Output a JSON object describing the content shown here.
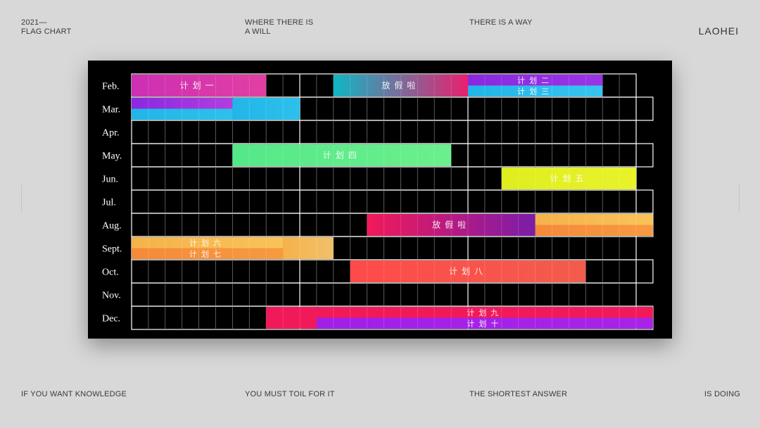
{
  "header": {
    "top_left_1": "2021—",
    "top_left_2": "FLAG CHART",
    "top_mid_1": "WHERE THERE IS",
    "top_mid_2": "A WILL",
    "top_mid_right": "THERE IS A WAY",
    "brand": "LAOHEI"
  },
  "footer": {
    "f1": "IF YOU WANT KNOWLEDGE",
    "f2": "YOU MUST TOIL FOR IT",
    "f3": "THE SHORTEST ANSWER",
    "f4": "IS DOING"
  },
  "chart_data": {
    "type": "gantt",
    "title": "",
    "months": [
      "Feb.",
      "Mar.",
      "Apr.",
      "May.",
      "Jun.",
      "Jul.",
      "Aug.",
      "Sept.",
      "Oct.",
      "Nov.",
      "Dec."
    ],
    "month_days": [
      28,
      31,
      30,
      31,
      30,
      31,
      31,
      30,
      31,
      30,
      31
    ],
    "weeks_per_row": 31,
    "bars": [
      {
        "row": 0,
        "start": 1,
        "end": 8,
        "half": "full",
        "label": "计划一",
        "colors": [
          "#cc2fb4",
          "#e23fa2"
        ]
      },
      {
        "row": 0,
        "start": 13,
        "end": 20,
        "half": "full",
        "label": "放假啦",
        "colors": [
          "#0fb7c4",
          "#e8206f"
        ]
      },
      {
        "row": 0,
        "start": 21,
        "end": 28,
        "half": "top",
        "label": "计划二",
        "colors": [
          "#8a28e0",
          "#9b33e6"
        ]
      },
      {
        "row": 0,
        "start": 21,
        "end": 28,
        "half": "bottom",
        "label": "计划三",
        "colors": [
          "#21b6e8",
          "#38c4ee"
        ]
      },
      {
        "row": 1,
        "start": 1,
        "end": 6,
        "half": "top",
        "label": "",
        "colors": [
          "#8a28e0",
          "#b23ee0"
        ]
      },
      {
        "row": 1,
        "start": 1,
        "end": 6,
        "half": "bottom",
        "label": "",
        "colors": [
          "#21b6e8",
          "#2ec0ec"
        ]
      },
      {
        "row": 1,
        "start": 7,
        "end": 10,
        "half": "full",
        "label": "",
        "colors": [
          "#21b6e8",
          "#2ec0ec"
        ]
      },
      {
        "row": 3,
        "start": 7,
        "end": 19,
        "half": "full",
        "label": "计划四",
        "colors": [
          "#54e888",
          "#6cef8e"
        ]
      },
      {
        "row": 4,
        "start": 23,
        "end": 30,
        "half": "full",
        "label": "计划五",
        "colors": [
          "#dfee1e",
          "#e9f22a"
        ]
      },
      {
        "row": 6,
        "start": 15,
        "end": 24,
        "half": "full",
        "label": "放假啦",
        "colors": [
          "#f2195a",
          "#7b1ca8"
        ]
      },
      {
        "row": 6,
        "start": 25,
        "end": 31,
        "half": "top",
        "label": "",
        "colors": [
          "#f6b24a",
          "#f8c35a"
        ]
      },
      {
        "row": 6,
        "start": 25,
        "end": 31,
        "half": "bottom",
        "label": "",
        "colors": [
          "#f58a3a",
          "#f69a40"
        ]
      },
      {
        "row": 7,
        "start": 1,
        "end": 9,
        "half": "top",
        "label": "计划六",
        "colors": [
          "#f6b24a",
          "#f8c35a"
        ]
      },
      {
        "row": 7,
        "start": 1,
        "end": 9,
        "half": "bottom",
        "label": "计划七",
        "colors": [
          "#f58a3a",
          "#f69a40"
        ]
      },
      {
        "row": 7,
        "start": 10,
        "end": 12,
        "half": "full",
        "label": "",
        "colors": [
          "#f6b24a",
          "#f0c06a"
        ]
      },
      {
        "row": 8,
        "start": 14,
        "end": 27,
        "half": "full",
        "label": "计划八",
        "colors": [
          "#ff4a4a",
          "#f25c4c"
        ]
      },
      {
        "row": 10,
        "start": 9,
        "end": 11,
        "half": "full",
        "label": "",
        "colors": [
          "#f2195a",
          "#f2195a"
        ]
      },
      {
        "row": 10,
        "start": 12,
        "end": 31,
        "half": "top",
        "label": "计划九",
        "colors": [
          "#f2195a",
          "#f2195a"
        ]
      },
      {
        "row": 10,
        "start": 12,
        "end": 31,
        "half": "bottom",
        "label": "计划十",
        "colors": [
          "#a020e8",
          "#a823e8"
        ]
      }
    ]
  }
}
